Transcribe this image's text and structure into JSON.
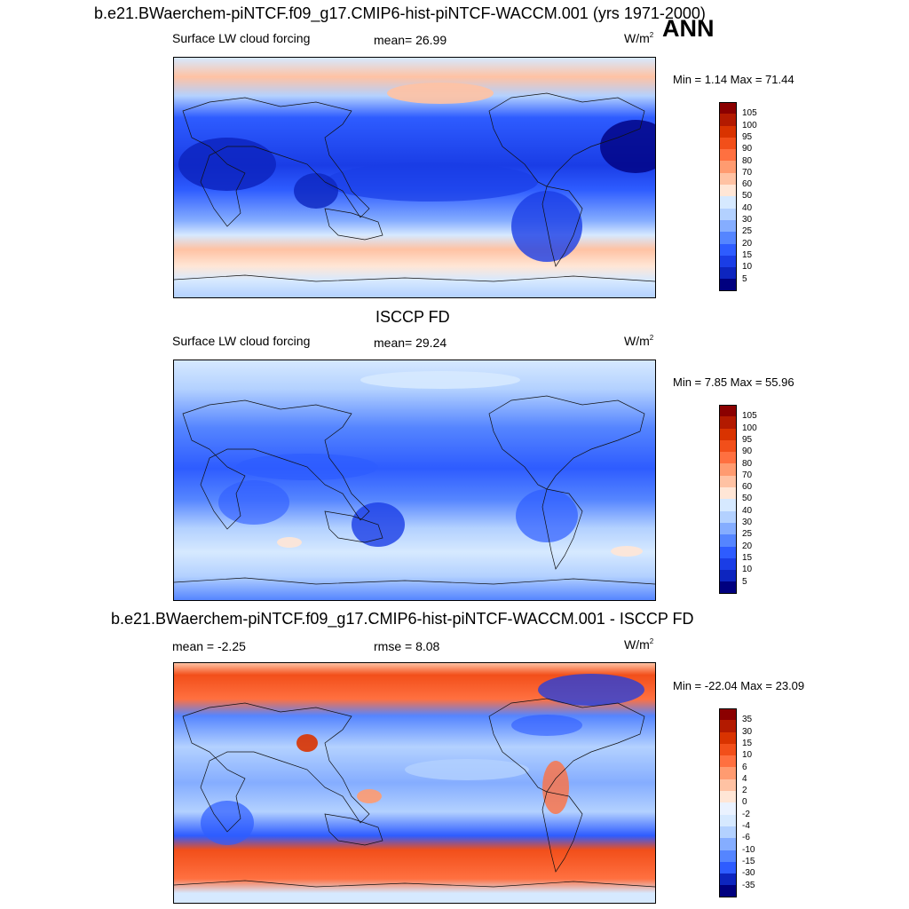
{
  "header": {
    "title": "b.e21.BWaerchem-piNTCF.f09_g17.CMIP6-hist-piNTCF-WACCM.001 (yrs 1971-2000)",
    "season": "ANN"
  },
  "panels": [
    {
      "title": "",
      "left_label": "Surface LW cloud forcing",
      "center_label": "mean=  26.99",
      "units": "W/m",
      "units_sup": "2",
      "minmax": "Min =   1.14 Max =  71.44",
      "colorbar": {
        "levels": [
          "105",
          "100",
          "95",
          "90",
          "80",
          "70",
          "60",
          "50",
          "40",
          "30",
          "25",
          "20",
          "15",
          "10",
          "5"
        ],
        "colors": [
          "#8b0000",
          "#b31a00",
          "#d93300",
          "#f24f1a",
          "#ff7040",
          "#ff9b70",
          "#ffc2a3",
          "#ffe6d6",
          "#d6e9ff",
          "#b3d1ff",
          "#85adff",
          "#5585ff",
          "#2e5cff",
          "#1a3de6",
          "#0d25bf",
          "#00007f"
        ]
      }
    },
    {
      "title": "ISCCP FD",
      "left_label": "Surface LW cloud forcing",
      "center_label": "mean=  29.24",
      "units": "W/m",
      "units_sup": "2",
      "minmax": "Min =   7.85 Max =  55.96",
      "colorbar": {
        "levels": [
          "105",
          "100",
          "95",
          "90",
          "80",
          "70",
          "60",
          "50",
          "40",
          "30",
          "25",
          "20",
          "15",
          "10",
          "5"
        ],
        "colors": [
          "#8b0000",
          "#b31a00",
          "#d93300",
          "#f24f1a",
          "#ff7040",
          "#ff9b70",
          "#ffc2a3",
          "#ffe6d6",
          "#d6e9ff",
          "#b3d1ff",
          "#85adff",
          "#5585ff",
          "#2e5cff",
          "#1a3de6",
          "#0d25bf",
          "#00007f"
        ]
      }
    },
    {
      "title": "b.e21.BWaerchem-piNTCF.f09_g17.CMIP6-hist-piNTCF-WACCM.001 - ISCCP FD",
      "left_label": "mean =  -2.25",
      "center_label": "rmse =   8.08",
      "units": "W/m",
      "units_sup": "2",
      "minmax": "Min = -22.04 Max =  23.09",
      "colorbar": {
        "levels": [
          "35",
          "30",
          "15",
          "10",
          "6",
          "4",
          "2",
          "0",
          "-2",
          "-4",
          "-6",
          "-10",
          "-15",
          "-30",
          "-35"
        ],
        "colors": [
          "#8b0000",
          "#b31a00",
          "#d93300",
          "#f24f1a",
          "#ff7040",
          "#ff9b70",
          "#ffc2a3",
          "#ffe6d6",
          "#eaf2ff",
          "#d6e9ff",
          "#b3d1ff",
          "#85adff",
          "#5585ff",
          "#2e5cff",
          "#0d25bf",
          "#00007f"
        ]
      }
    }
  ]
}
